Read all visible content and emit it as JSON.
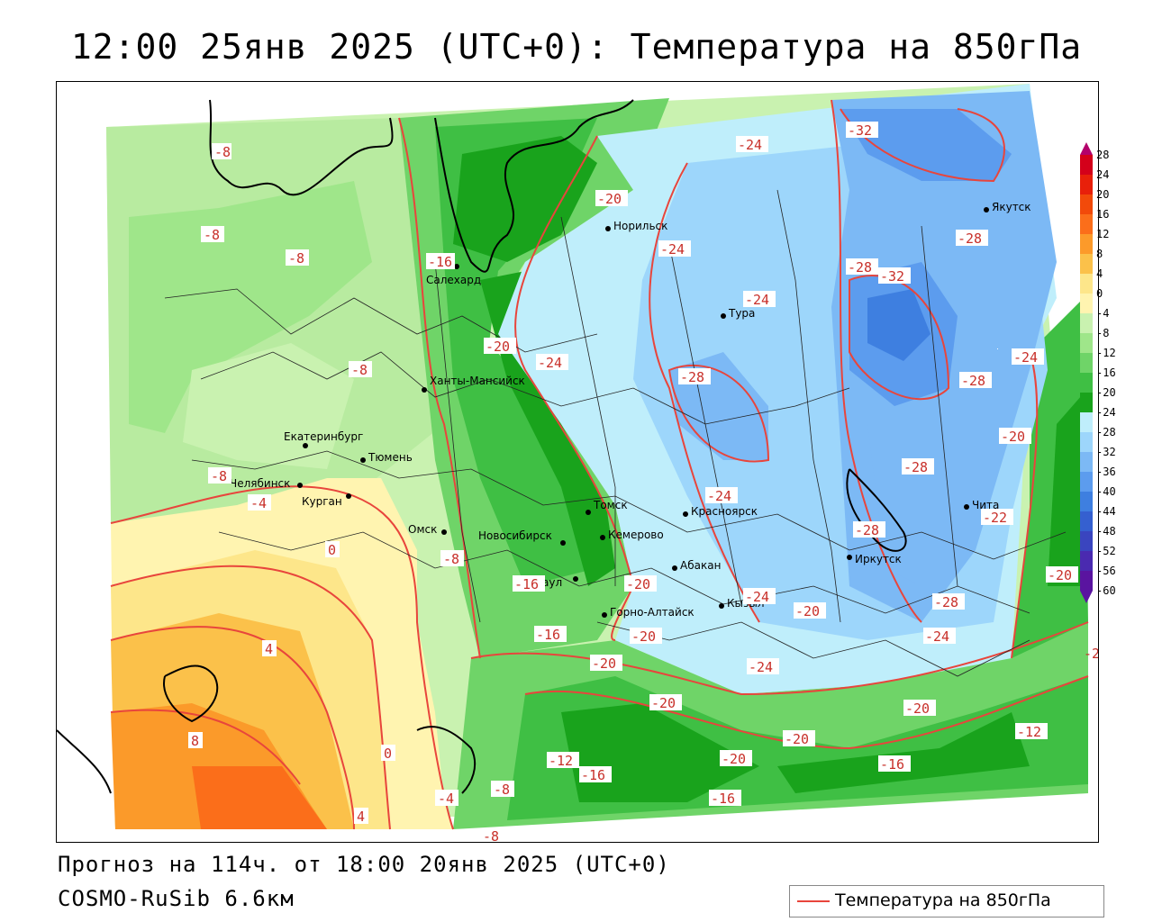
{
  "header": {
    "title": "12:00 25янв 2025 (UTC+0): Температура на 850гПа"
  },
  "footer": {
    "forecast": "Прогноз на 114ч. от 18:00 20янв 2025 (UTC+0)",
    "model": "COSMO-RuSib 6.6км"
  },
  "legend": {
    "label": "Температура на 850гПа",
    "line_color": "#e8453c"
  },
  "colorbar": {
    "labels": [
      "28",
      "24",
      "20",
      "16",
      "12",
      "8",
      "4",
      "0",
      "-4",
      "-8",
      "-12",
      "-16",
      "-20",
      "-24",
      "-28",
      "-32",
      "-36",
      "-40",
      "-44",
      "-48",
      "-52",
      "-56",
      "-60"
    ],
    "colors": [
      "#b3006b",
      "#d4001a",
      "#e8200a",
      "#f24a0a",
      "#fb6e1a",
      "#fc9a2a",
      "#fbc14a",
      "#fde68a",
      "#fff4b0",
      "#c9f2b0",
      "#9fe68a",
      "#6fd468",
      "#3fbf44",
      "#19a31c",
      "#bfeefb",
      "#9dd6fb",
      "#7cb9f5",
      "#5c9cee",
      "#3e7fe0",
      "#3560d0",
      "#3a45bf",
      "#4a2ab0",
      "#5a14a0"
    ]
  },
  "cities": [
    {
      "name": "Норильск"
    },
    {
      "name": "Якутск"
    },
    {
      "name": "Салехард"
    },
    {
      "name": "Тура"
    },
    {
      "name": "Ханты-Мансийск"
    },
    {
      "name": "Екатеринбург"
    },
    {
      "name": "Тюмень"
    },
    {
      "name": "Челябинск"
    },
    {
      "name": "Курган"
    },
    {
      "name": "Томск"
    },
    {
      "name": "Красноярск"
    },
    {
      "name": "Омск"
    },
    {
      "name": "Новосибирск"
    },
    {
      "name": "Кемерово"
    },
    {
      "name": "Абакан"
    },
    {
      "name": "Барнаул"
    },
    {
      "name": "Кызыл"
    },
    {
      "name": "Горно-Алтайск"
    },
    {
      "name": "Иркутск"
    },
    {
      "name": "Чита"
    }
  ],
  "isolines": [
    {
      "text": "-8"
    },
    {
      "text": "-8"
    },
    {
      "text": "-8"
    },
    {
      "text": "-8"
    },
    {
      "text": "-8"
    },
    {
      "text": "-4"
    },
    {
      "text": "0"
    },
    {
      "text": "4"
    },
    {
      "text": "8"
    },
    {
      "text": "0"
    },
    {
      "text": "-4"
    },
    {
      "text": "-8"
    },
    {
      "text": "4"
    },
    {
      "text": "-16"
    },
    {
      "text": "-20"
    },
    {
      "text": "-24"
    },
    {
      "text": "-20"
    },
    {
      "text": "-24"
    },
    {
      "text": "-24"
    },
    {
      "text": "-32"
    },
    {
      "text": "-28"
    },
    {
      "text": "-28"
    },
    {
      "text": "-32"
    },
    {
      "text": "-28"
    },
    {
      "text": "-24"
    },
    {
      "text": "-28"
    },
    {
      "text": "-20"
    },
    {
      "text": "-28"
    },
    {
      "text": "-24"
    },
    {
      "text": "-24"
    },
    {
      "text": "-28"
    },
    {
      "text": "-22"
    },
    {
      "text": "-20"
    },
    {
      "text": "-28"
    },
    {
      "text": "-24"
    },
    {
      "text": "-16"
    },
    {
      "text": "-20"
    },
    {
      "text": "-20"
    },
    {
      "text": "-24"
    },
    {
      "text": "-20"
    },
    {
      "text": "-20"
    },
    {
      "text": "-20"
    },
    {
      "text": "-12"
    },
    {
      "text": "-16"
    },
    {
      "text": "-20"
    },
    {
      "text": "-16"
    },
    {
      "text": "-16"
    },
    {
      "text": "-12"
    },
    {
      "text": "-20"
    },
    {
      "text": "-8"
    },
    {
      "text": "-24"
    },
    {
      "text": "-8"
    },
    {
      "text": "-20"
    },
    {
      "text": "-16"
    },
    {
      "text": "-24"
    }
  ]
}
